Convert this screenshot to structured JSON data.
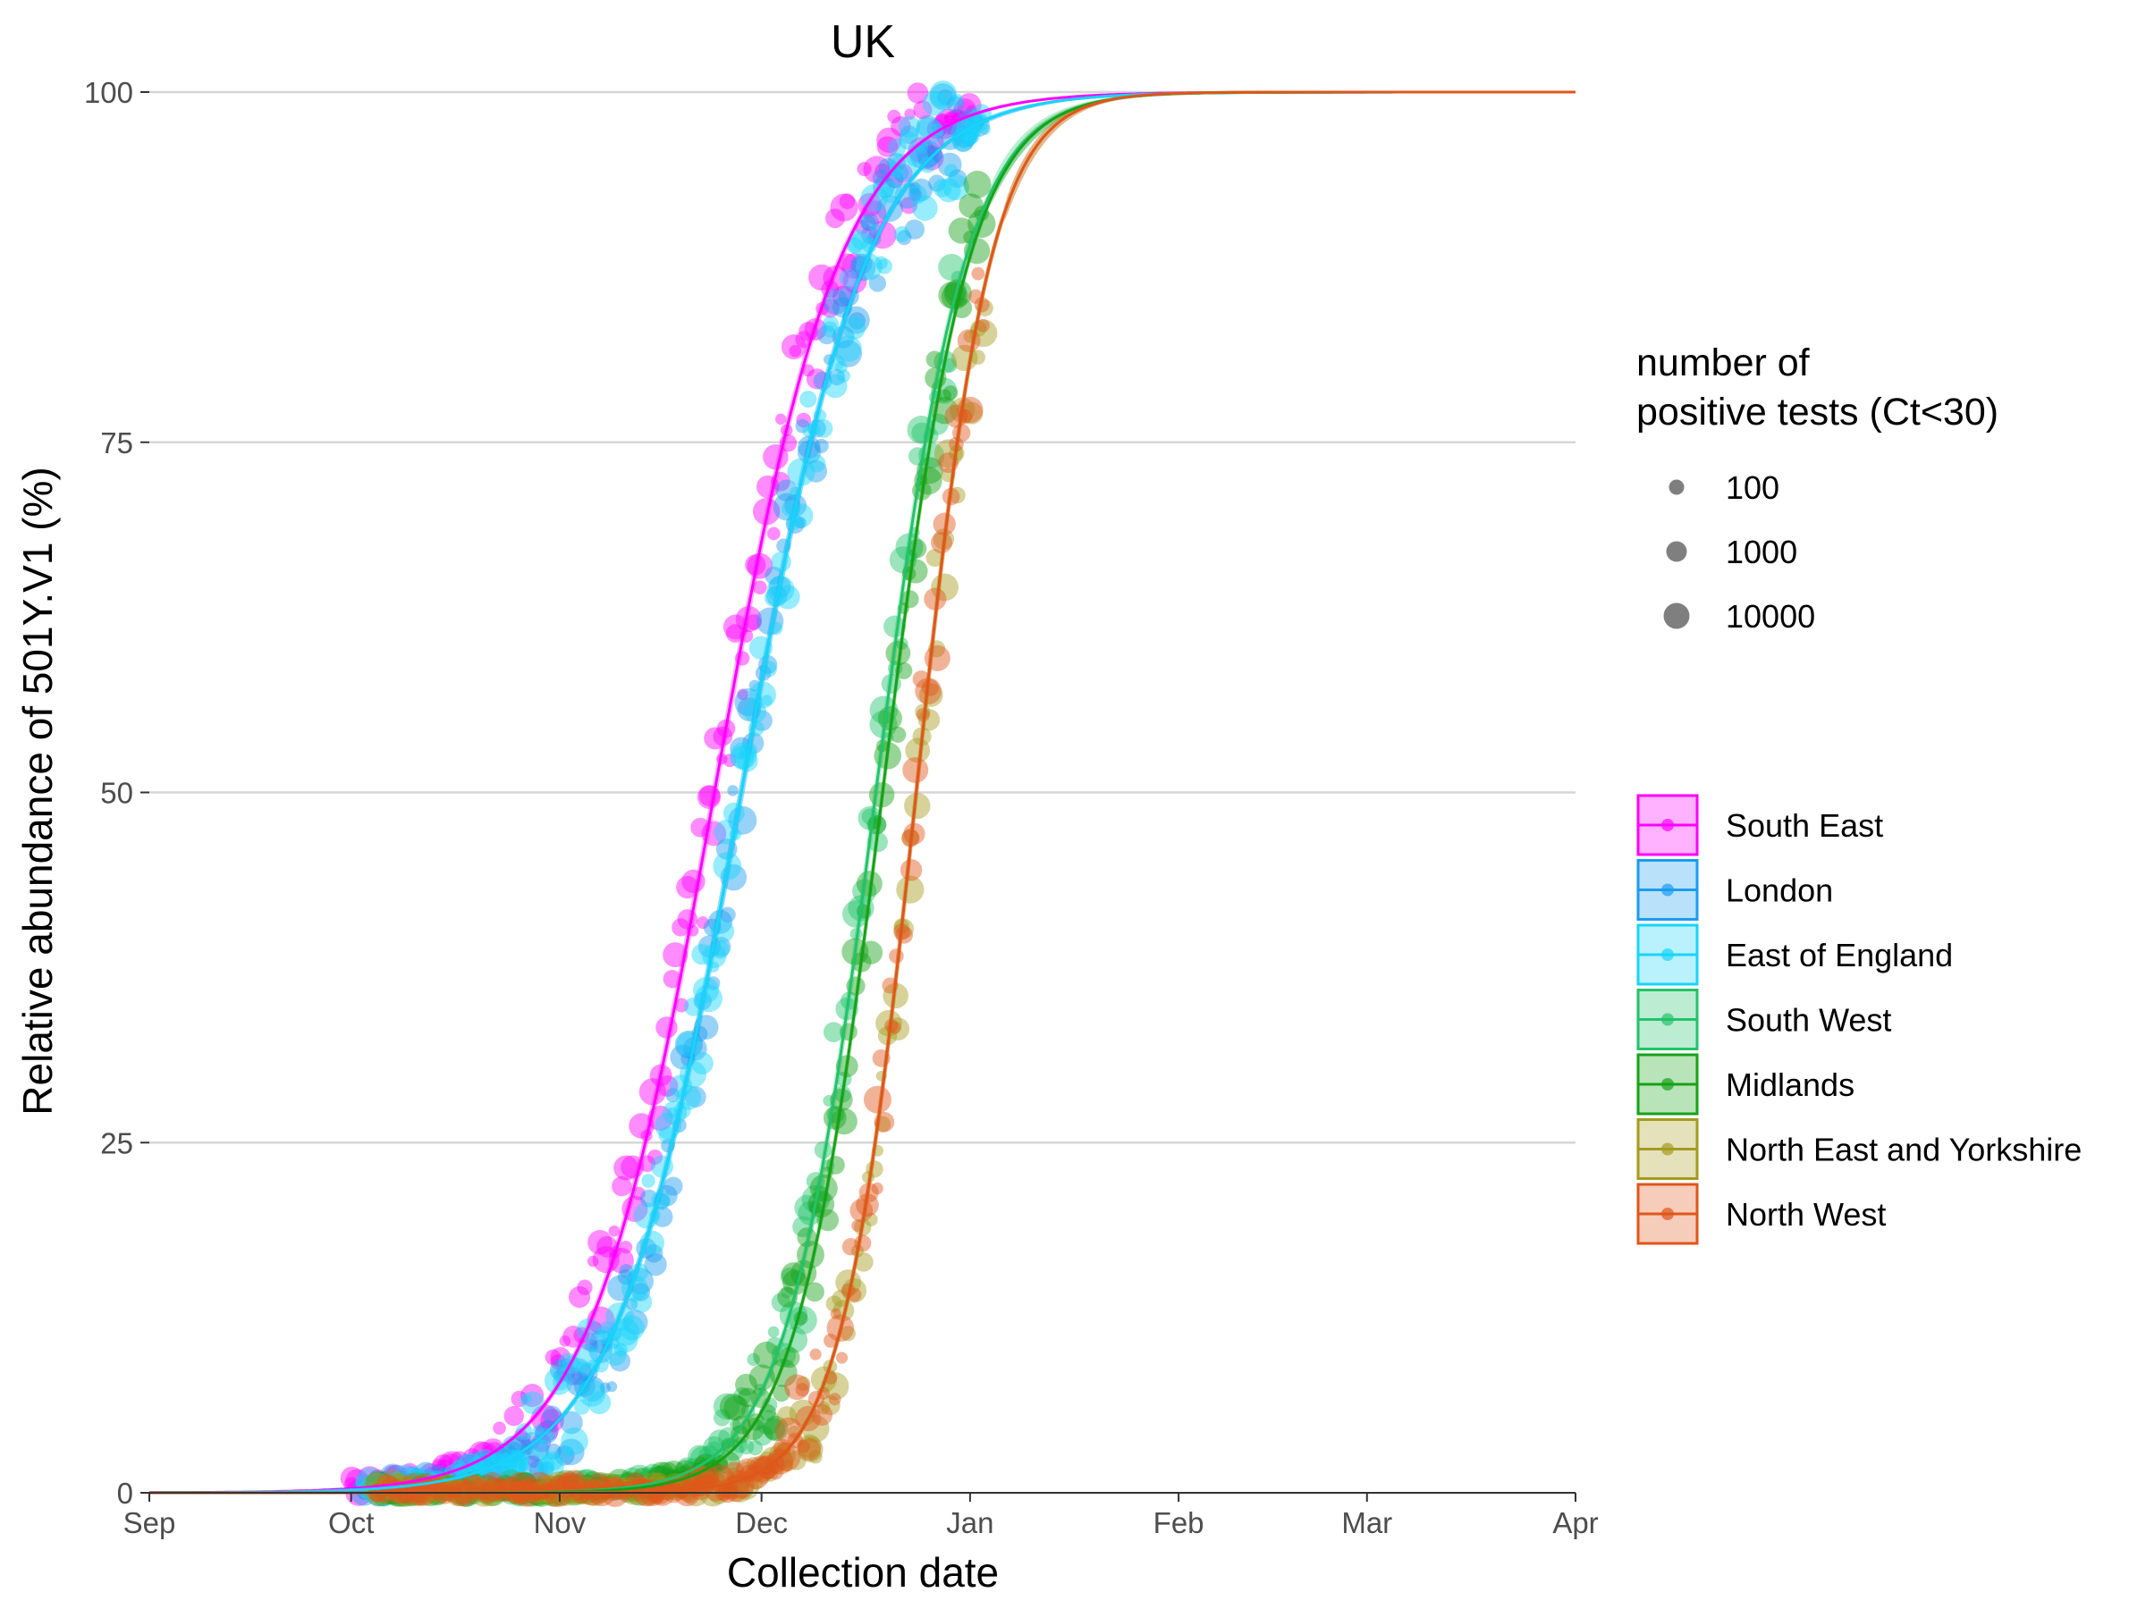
{
  "chart_data": {
    "type": "scatter",
    "title": "UK",
    "xlabel": "Collection date",
    "ylabel": "Relative abundance of 501Y.V1 (%)",
    "x_axis": {
      "type": "date",
      "range": [
        "2020-09-01",
        "2021-04-01"
      ],
      "ticks": [
        {
          "date": "2020-09-01",
          "label": "Sep"
        },
        {
          "date": "2020-10-01",
          "label": "Oct"
        },
        {
          "date": "2020-11-01",
          "label": "Nov"
        },
        {
          "date": "2020-12-01",
          "label": "Dec"
        },
        {
          "date": "2021-01-01",
          "label": "Jan"
        },
        {
          "date": "2021-02-01",
          "label": "Feb"
        },
        {
          "date": "2021-03-01",
          "label": "Mar"
        },
        {
          "date": "2021-04-01",
          "label": "Apr"
        }
      ]
    },
    "y_axis": {
      "range": [
        0,
        100
      ],
      "ticks": [
        0,
        25,
        50,
        75,
        100
      ],
      "tick_labels": [
        "0",
        "25",
        "50",
        "75",
        "100"
      ]
    },
    "grid": "horizontal major",
    "size_legend": {
      "title_lines": [
        "number of",
        "positive tests (Ct<30)"
      ],
      "entries": [
        {
          "label": "100",
          "value": 100
        },
        {
          "label": "1000",
          "value": 1000
        },
        {
          "label": "10000",
          "value": 10000
        }
      ]
    },
    "legend_placement": "right",
    "series": [
      {
        "name": "South East",
        "color": "#ff00ff",
        "curve": {
          "midpoint_date": "2020-11-24",
          "growth_per_day": 0.107,
          "band_start": "2021-01-01",
          "band_hw_start": 0.05,
          "band_hw_end": 0.35
        },
        "points_date_range": [
          "2020-10-01",
          "2021-01-01"
        ]
      },
      {
        "name": "London",
        "color": "#1a9cf0",
        "curve": {
          "midpoint_date": "2020-11-28",
          "growth_per_day": 0.107,
          "band_start": "2020-12-31",
          "band_hw_start": 0.05,
          "band_hw_end": 0.35
        },
        "points_date_range": [
          "2020-10-03",
          "2021-01-02"
        ]
      },
      {
        "name": "East of England",
        "color": "#18d4fa",
        "curve": {
          "midpoint_date": "2020-11-28",
          "growth_per_day": 0.107,
          "band_start": "2021-01-01",
          "band_hw_start": 0.05,
          "band_hw_end": 0.35
        },
        "points_date_range": [
          "2020-10-03",
          "2021-01-03"
        ]
      },
      {
        "name": "South West",
        "color": "#22c36a",
        "curve": {
          "midpoint_date": "2020-12-18",
          "growth_per_day": 0.15,
          "band_start": "2021-01-04",
          "band_hw_start": 0.06,
          "band_hw_end": 0.55
        },
        "points_date_range": [
          "2020-10-05",
          "2020-12-30"
        ]
      },
      {
        "name": "Midlands",
        "color": "#16a218",
        "curve": {
          "midpoint_date": "2020-12-19",
          "growth_per_day": 0.155,
          "band_start": "2021-01-04",
          "band_hw_start": 0.05,
          "band_hw_end": 0.35
        },
        "points_date_range": [
          "2020-10-05",
          "2021-01-03"
        ]
      },
      {
        "name": "North East and Yorkshire",
        "color": "#a49b1e",
        "curve": {
          "midpoint_date": "2020-12-24",
          "growth_per_day": 0.18,
          "band_start": "2021-01-06",
          "band_hw_start": 0.06,
          "band_hw_end": 0.4
        },
        "points_date_range": [
          "2020-10-05",
          "2021-01-03"
        ]
      },
      {
        "name": "North West",
        "color": "#e0561a",
        "curve": {
          "midpoint_date": "2020-12-24",
          "growth_per_day": 0.18,
          "band_start": "2021-01-06",
          "band_hw_start": 0.06,
          "band_hw_end": 0.4
        },
        "points_date_range": [
          "2020-10-05",
          "2021-01-03"
        ]
      }
    ]
  }
}
